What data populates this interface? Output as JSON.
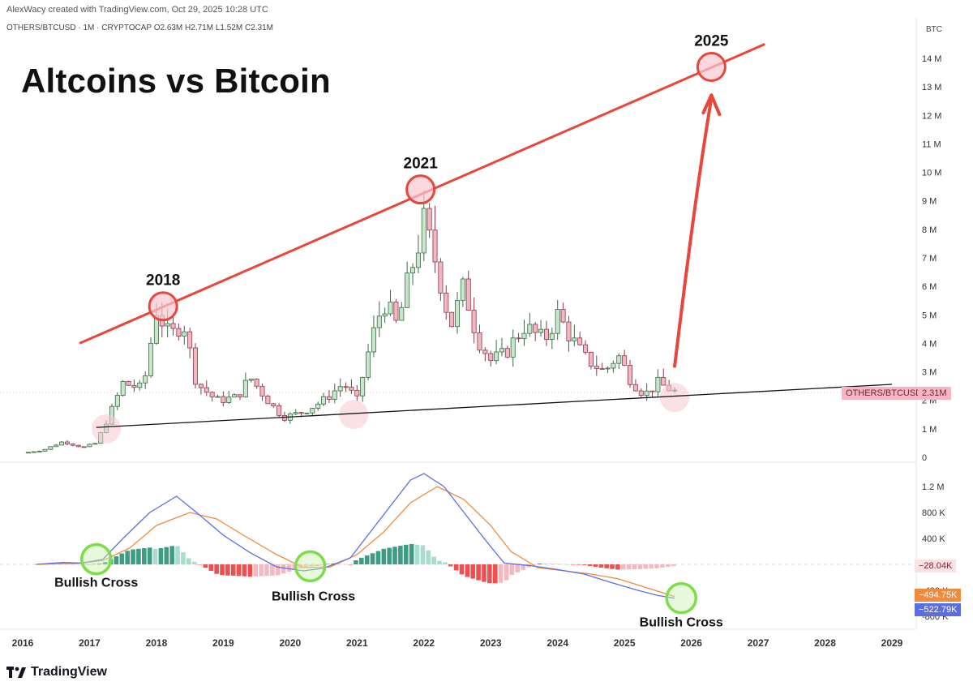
{
  "header": {
    "credit": "AlexWacy created with TradingView.com, Oct 29, 2025 10:28 UTC",
    "symbol_line": "OTHERS/BTCUSD · 1M · CRYPTOCAP  O2.63M  H2.71M  L1.52M  C2.31M",
    "currency": "BTC"
  },
  "title": "Altcoins vs Bitcoin",
  "footer": {
    "brand": "TradingView"
  },
  "colors": {
    "bull": "#26a69a",
    "bull_fill": "#c8e6c9",
    "bear": "#ef5350",
    "bear_fill": "#f4b6c2",
    "trend_red": "#e8463a",
    "macd_line": "#5b6ee1",
    "signal_line": "#f08a3c",
    "green_circle": "#7ddc4a"
  },
  "chart_data": [
    {
      "type": "candlestick",
      "symbol": "OTHERS/BTCUSD",
      "interval": "1M",
      "ohlc_last": {
        "open": "2.63M",
        "high": "2.71M",
        "low": "1.52M",
        "close": "2.31M"
      },
      "y_ticks": [
        "14 M",
        "13 M",
        "12 M",
        "11 M",
        "10 M",
        "9 M",
        "8 M",
        "7 M",
        "6 M",
        "5 M",
        "4 M",
        "3 M",
        "2 M",
        "1 M",
        "0"
      ],
      "x_ticks": [
        "2016",
        "2017",
        "2018",
        "2019",
        "2020",
        "2021",
        "2022",
        "2023",
        "2024",
        "2025",
        "2026",
        "2027",
        "2028",
        "2029"
      ],
      "ylim": [
        0,
        14000000
      ],
      "last_price_label": "OTHERS/BTCUSD",
      "last_price_value": "2.31M",
      "path": [
        [
          2016.0,
          0.15
        ],
        [
          2016.3,
          0.25
        ],
        [
          2016.6,
          0.55
        ],
        [
          2016.9,
          0.35
        ],
        [
          2017.1,
          0.5
        ],
        [
          2017.3,
          1.5
        ],
        [
          2017.5,
          2.6
        ],
        [
          2017.8,
          2.4
        ],
        [
          2018.0,
          5.2
        ],
        [
          2018.2,
          4.2
        ],
        [
          2018.4,
          4.8
        ],
        [
          2018.6,
          2.6
        ],
        [
          2018.9,
          2.0
        ],
        [
          2019.2,
          2.1
        ],
        [
          2019.4,
          2.8
        ],
        [
          2019.7,
          1.9
        ],
        [
          2019.9,
          1.4
        ],
        [
          2020.2,
          1.6
        ],
        [
          2020.5,
          2.0
        ],
        [
          2020.8,
          2.6
        ],
        [
          2021.0,
          2.0
        ],
        [
          2021.2,
          4.0
        ],
        [
          2021.4,
          5.5
        ],
        [
          2021.6,
          4.6
        ],
        [
          2021.8,
          6.5
        ],
        [
          2022.0,
          8.2
        ],
        [
          2022.2,
          6.7
        ],
        [
          2022.4,
          4.6
        ],
        [
          2022.6,
          6.0
        ],
        [
          2022.8,
          4.2
        ],
        [
          2023.0,
          3.4
        ],
        [
          2023.2,
          3.6
        ],
        [
          2023.5,
          4.6
        ],
        [
          2023.8,
          4.1
        ],
        [
          2024.0,
          5.0
        ],
        [
          2024.2,
          4.2
        ],
        [
          2024.4,
          3.5
        ],
        [
          2024.7,
          3.0
        ],
        [
          2024.9,
          3.6
        ],
        [
          2025.1,
          2.7
        ],
        [
          2025.3,
          2.2
        ],
        [
          2025.5,
          2.6
        ],
        [
          2025.75,
          2.31
        ]
      ],
      "annotations": [
        {
          "label": "2018",
          "x": 2018.1,
          "y": 5300000
        },
        {
          "label": "2021",
          "x": 2021.95,
          "y": 9400000
        },
        {
          "label": "2025",
          "x": 2026.3,
          "y": 13700000
        }
      ],
      "resistance_line": {
        "from": [
          2016.85,
          4000000
        ],
        "to": [
          2027.1,
          14500000
        ]
      },
      "support_line": {
        "from": [
          2017.1,
          1050000
        ],
        "to": [
          2029.0,
          2560000
        ]
      },
      "pink_circles": [
        [
          2017.25,
          1000000
        ],
        [
          2020.95,
          1500000
        ],
        [
          2025.75,
          2100000
        ]
      ]
    },
    {
      "type": "macd",
      "y_ticks": [
        "1.2 M",
        "800 K",
        "400 K",
        "-400 K",
        "-800 K"
      ],
      "labels": {
        "histogram": "−28.04K",
        "signal": "−494.75K",
        "macd": "−522.79K"
      },
      "annotations": [
        {
          "label": "Bullish Cross",
          "x": 2017.1,
          "y": 80000
        },
        {
          "label": "Bullish Cross",
          "x": 2020.3,
          "y": -30000
        },
        {
          "label": "Bullish Cross",
          "x": 2025.85,
          "y": -520000
        }
      ],
      "macd_path": [
        [
          2016.2,
          0
        ],
        [
          2016.6,
          30000
        ],
        [
          2016.9,
          20000
        ],
        [
          2017.2,
          80000
        ],
        [
          2017.5,
          400000
        ],
        [
          2017.9,
          800000
        ],
        [
          2018.3,
          1050000
        ],
        [
          2018.6,
          800000
        ],
        [
          2019.0,
          450000
        ],
        [
          2019.4,
          180000
        ],
        [
          2019.8,
          -40000
        ],
        [
          2020.2,
          -100000
        ],
        [
          2020.5,
          -60000
        ],
        [
          2020.9,
          100000
        ],
        [
          2021.2,
          500000
        ],
        [
          2021.5,
          900000
        ],
        [
          2021.8,
          1300000
        ],
        [
          2022.0,
          1400000
        ],
        [
          2022.3,
          1200000
        ],
        [
          2022.6,
          800000
        ],
        [
          2022.9,
          400000
        ],
        [
          2023.2,
          20000
        ],
        [
          2023.6,
          -20000
        ],
        [
          2024.0,
          -80000
        ],
        [
          2024.4,
          -150000
        ],
        [
          2024.8,
          -280000
        ],
        [
          2025.2,
          -400000
        ],
        [
          2025.5,
          -480000
        ],
        [
          2025.75,
          -522790
        ]
      ],
      "signal_path": [
        [
          2016.2,
          0
        ],
        [
          2016.8,
          15000
        ],
        [
          2017.2,
          60000
        ],
        [
          2017.6,
          250000
        ],
        [
          2018.0,
          600000
        ],
        [
          2018.5,
          800000
        ],
        [
          2018.9,
          700000
        ],
        [
          2019.3,
          450000
        ],
        [
          2019.8,
          150000
        ],
        [
          2020.2,
          -50000
        ],
        [
          2020.6,
          -40000
        ],
        [
          2021.0,
          150000
        ],
        [
          2021.4,
          500000
        ],
        [
          2021.8,
          950000
        ],
        [
          2022.2,
          1200000
        ],
        [
          2022.6,
          1000000
        ],
        [
          2023.0,
          600000
        ],
        [
          2023.3,
          200000
        ],
        [
          2023.7,
          -50000
        ],
        [
          2024.1,
          -100000
        ],
        [
          2024.5,
          -150000
        ],
        [
          2024.9,
          -220000
        ],
        [
          2025.3,
          -350000
        ],
        [
          2025.75,
          -494750
        ]
      ]
    }
  ]
}
